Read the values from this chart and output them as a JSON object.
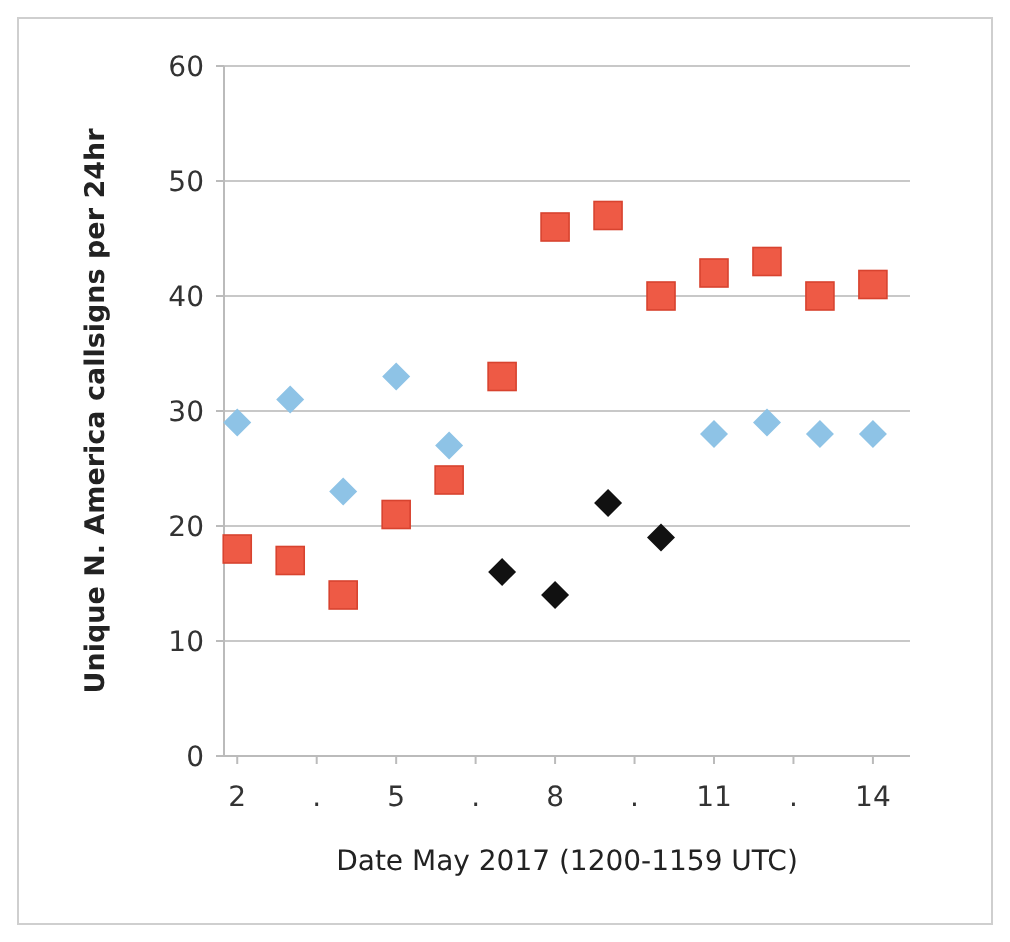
{
  "chart_data": {
    "type": "scatter",
    "xlabel": "Date May 2017 (1200-1159 UTC)",
    "ylabel": "Unique N. America callsigns per 24hr",
    "xlim": [
      1.75,
      14.7
    ],
    "xticks": [
      2,
      {
        "value": 3.5,
        "label": "."
      },
      5,
      {
        "value": 6.5,
        "label": "."
      },
      8,
      {
        "value": 9.5,
        "label": "."
      },
      11,
      {
        "value": 12.5,
        "label": "."
      },
      14
    ],
    "ylim": [
      0,
      60
    ],
    "yticks": [
      0,
      10,
      20,
      30,
      40,
      50,
      60
    ],
    "grid": "y",
    "series": [
      {
        "color": "#8ec3e6",
        "marker": "diamond",
        "x": [
          2,
          3,
          4,
          5,
          6,
          11,
          12,
          13,
          14
        ],
        "values": [
          29,
          31,
          23,
          33,
          27,
          28,
          29,
          28,
          28
        ]
      },
      {
        "color": "#ee5a45",
        "marker": "square",
        "x": [
          2,
          3,
          4,
          5,
          6,
          7,
          8,
          9,
          10,
          11,
          12,
          13,
          14
        ],
        "values": [
          18,
          17,
          14,
          21,
          24,
          33,
          46,
          47,
          40,
          42,
          43,
          40,
          41
        ]
      },
      {
        "color": "#111111",
        "marker": "diamond",
        "x": [
          7,
          8,
          9,
          10
        ],
        "values": [
          16,
          14,
          22,
          19
        ]
      }
    ]
  }
}
